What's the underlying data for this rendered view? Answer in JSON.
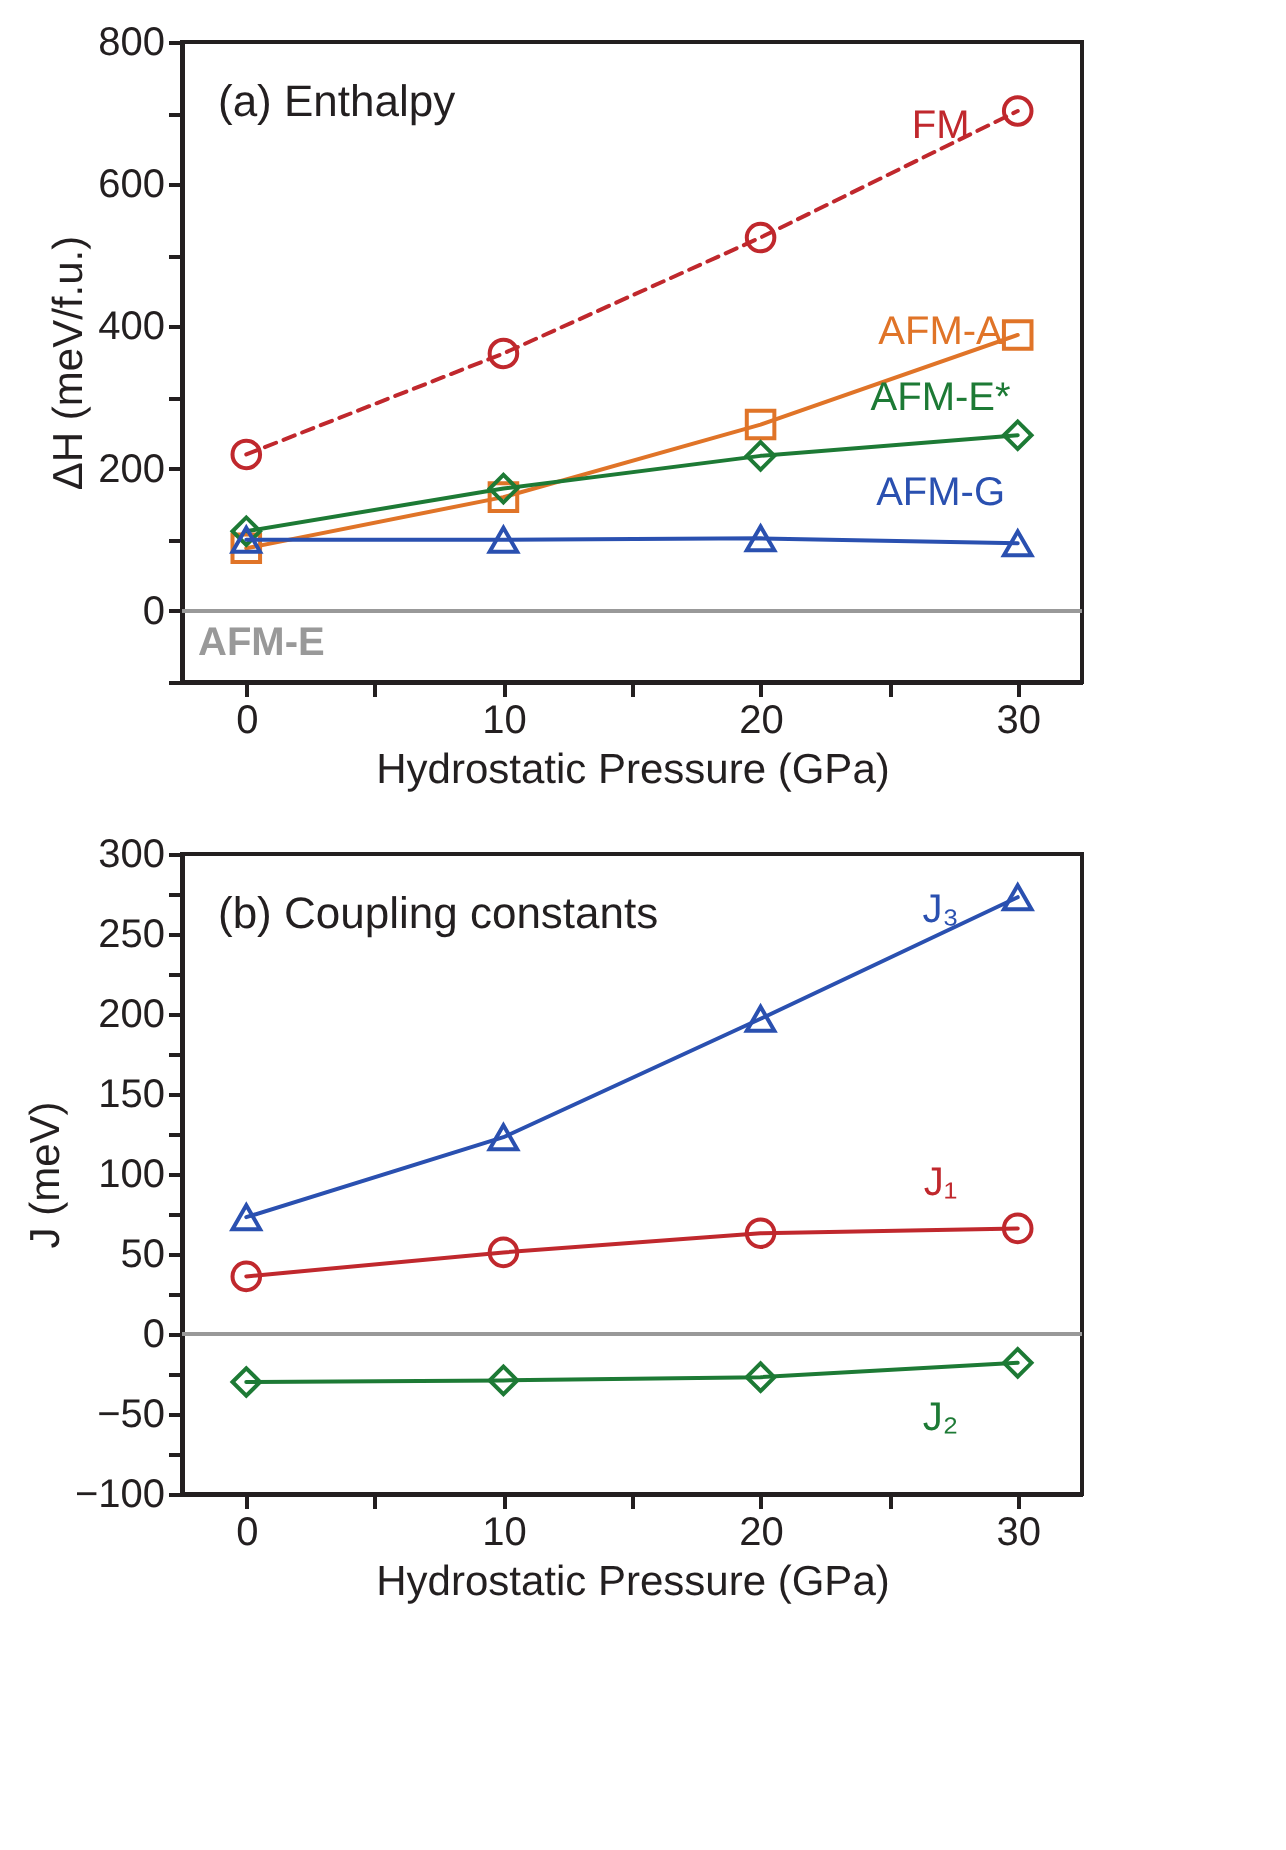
{
  "chart_data": [
    {
      "type": "line",
      "title": "(a) Enthalpy",
      "xlabel": "Hydrostatic Pressure (GPa)",
      "ylabel": "ΔH (meV/f.u.)",
      "x": [
        0,
        10,
        20,
        30
      ],
      "series": [
        {
          "name": "FM",
          "color": "#c0282d",
          "values": [
            220,
            362,
            525,
            703
          ],
          "marker": "circle",
          "line_style": "dashed"
        },
        {
          "name": "AFM-A",
          "color": "#e07428",
          "values": [
            88,
            160,
            262,
            388
          ],
          "marker": "square",
          "line_style": "solid"
        },
        {
          "name": "AFM-E*",
          "color": "#1d7a35",
          "values": [
            112,
            172,
            218,
            247
          ],
          "marker": "diamond",
          "line_style": "solid"
        },
        {
          "name": "AFM-G",
          "color": "#2a50b0",
          "values": [
            100,
            100,
            102,
            95
          ],
          "marker": "triangle",
          "line_style": "solid"
        }
      ],
      "ref_lines": [
        {
          "axis": "y",
          "value": 0,
          "label": "AFM-E",
          "color": "#999999"
        }
      ],
      "xlim": [
        -2.5,
        32.5
      ],
      "xticks": [
        0,
        {
          "value": 5,
          "label": null
        },
        10,
        {
          "value": 15,
          "label": null
        },
        20,
        {
          "value": 25,
          "label": null
        },
        30
      ],
      "ylim": [
        -100,
        800
      ],
      "yticks": [
        {
          "value": -100,
          "label": null
        },
        0,
        {
          "value": 100,
          "label": null
        },
        200,
        {
          "value": 300,
          "label": null
        },
        400,
        {
          "value": 500,
          "label": null
        },
        600,
        {
          "value": 700,
          "label": null
        },
        800
      ],
      "grid": false,
      "legend": false
    },
    {
      "type": "line",
      "title": "(b) Coupling constants",
      "xlabel": "Hydrostatic Pressure (GPa)",
      "ylabel": "J (meV)",
      "x": [
        0,
        10,
        20,
        30
      ],
      "series": [
        {
          "name": "J₃",
          "color": "#2a50b0",
          "values": [
            73,
            123,
            197,
            273
          ],
          "marker": "triangle",
          "line_style": "solid"
        },
        {
          "name": "J₁",
          "color": "#c0282d",
          "values": [
            36,
            51,
            63,
            66
          ],
          "marker": "circle",
          "line_style": "solid"
        },
        {
          "name": "J₂",
          "color": "#1d7a35",
          "values": [
            -30,
            -29,
            -27,
            -18
          ],
          "marker": "diamond",
          "line_style": "solid"
        }
      ],
      "ref_lines": [
        {
          "axis": "y",
          "value": 0,
          "label": null,
          "color": "#999999"
        }
      ],
      "xlim": [
        -2.5,
        32.5
      ],
      "xticks": [
        0,
        {
          "value": 5,
          "label": null
        },
        10,
        {
          "value": 15,
          "label": null
        },
        20,
        {
          "value": 25,
          "label": null
        },
        30
      ],
      "ylim": [
        -100,
        300
      ],
      "yticks": [
        {
          "value": -100,
          "label": "−100"
        },
        {
          "value": -75,
          "label": null
        },
        {
          "value": -50,
          "label": "−50"
        },
        {
          "value": -25,
          "label": null
        },
        0,
        {
          "value": 25,
          "label": null
        },
        50,
        {
          "value": 75,
          "label": null
        },
        100,
        {
          "value": 125,
          "label": null
        },
        150,
        {
          "value": 175,
          "label": null
        },
        200,
        {
          "value": 225,
          "label": null
        },
        250,
        {
          "value": 275,
          "label": null
        },
        300
      ],
      "grid": false,
      "legend": false
    }
  ]
}
